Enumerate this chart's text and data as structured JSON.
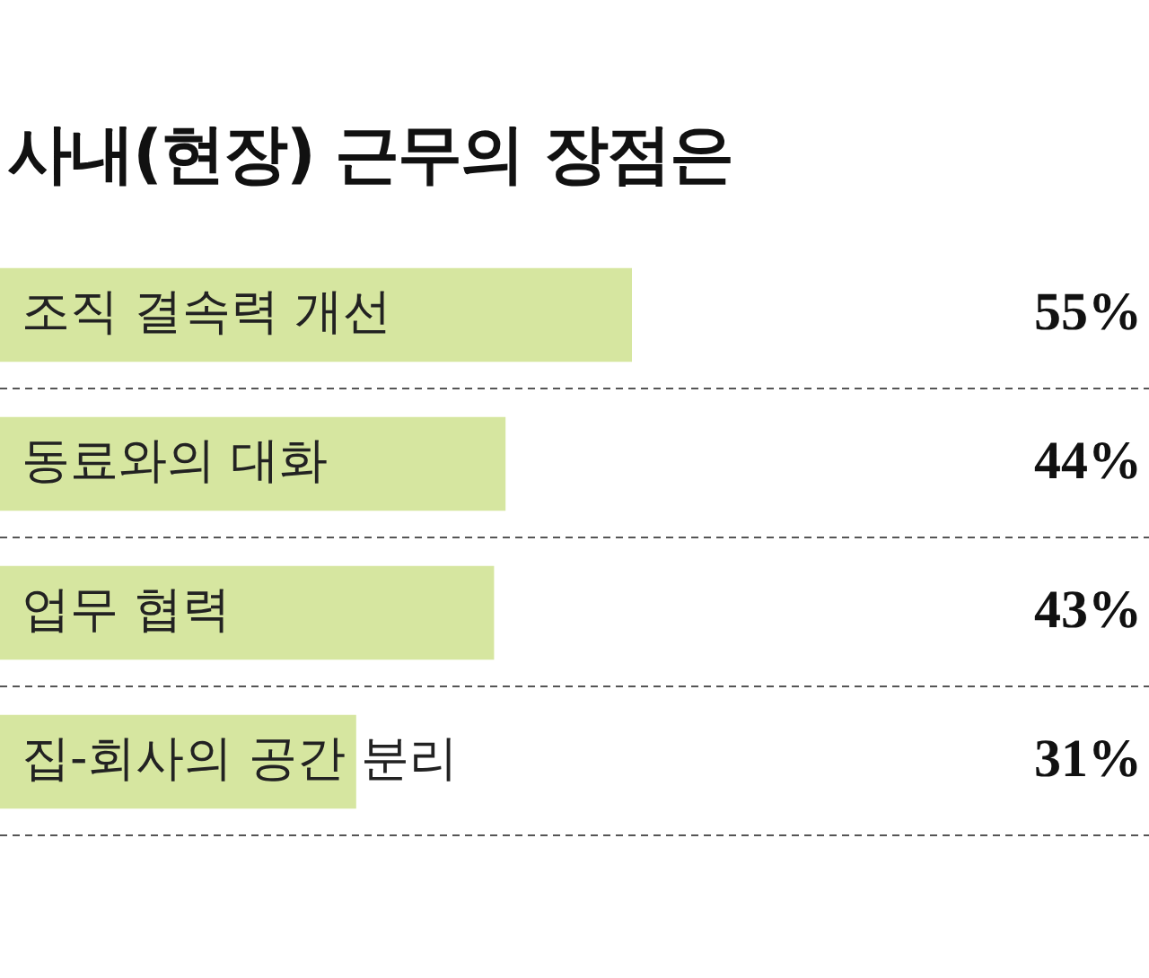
{
  "chart_data": {
    "type": "bar",
    "orientation": "horizontal",
    "title": "사내(현장) 근무의 장점은",
    "categories": [
      "조직 결속력 개선",
      "동료와의 대화",
      "업무 협력",
      "집-회사의 공간 분리"
    ],
    "values": [
      55,
      44,
      43,
      31
    ],
    "color": "#d6e6a0",
    "value_labels": [
      "55%",
      "44%",
      "43%",
      "31%"
    ],
    "xlim": [
      0,
      100
    ],
    "tick_labels": false,
    "grid": "y",
    "line_style": "dashed",
    "legend": false
  }
}
